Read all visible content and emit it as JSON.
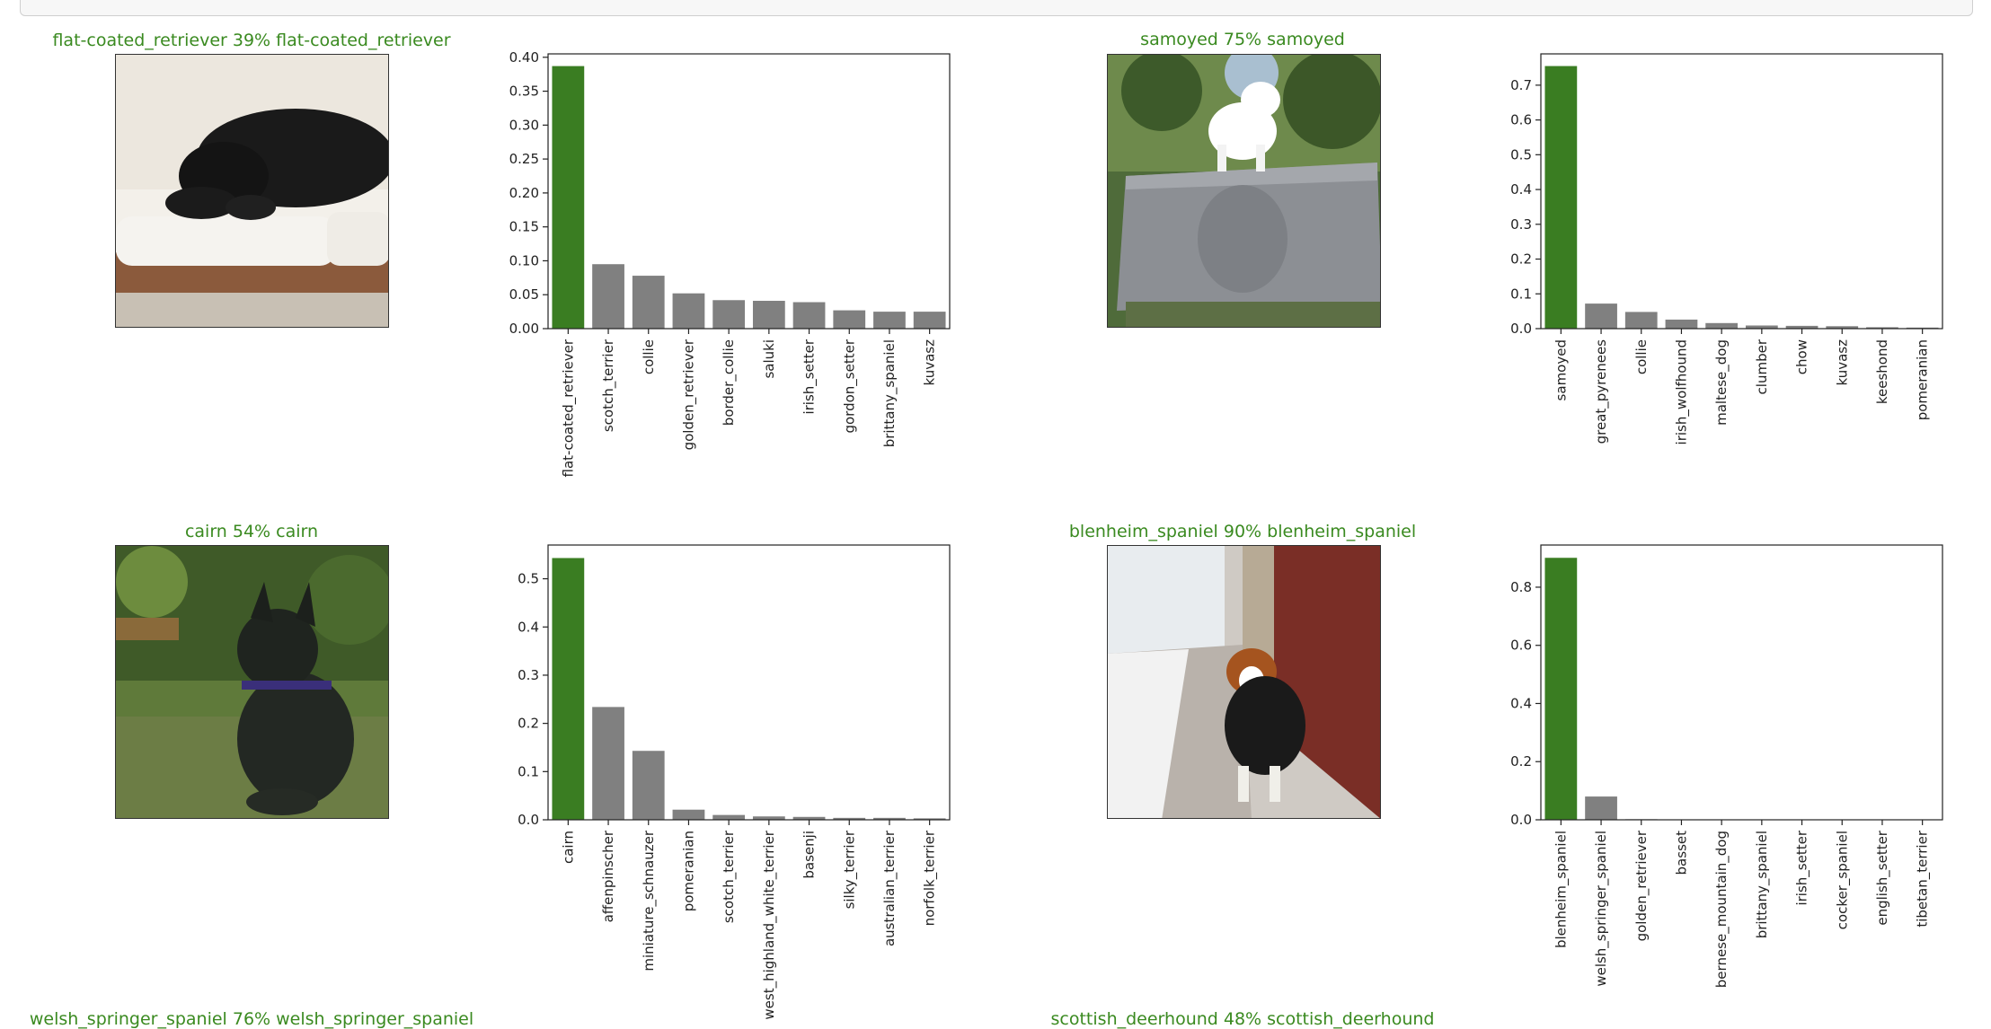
{
  "chart_data": [
    {
      "type": "bar",
      "title": "flat-coated_retriever 39% flat-coated_retriever",
      "categories": [
        "flat-coated_retriever",
        "scotch_terrier",
        "collie",
        "golden_retriever",
        "border_collie",
        "saluki",
        "irish_setter",
        "gordon_setter",
        "brittany_spaniel",
        "kuvasz"
      ],
      "values": [
        0.387,
        0.095,
        0.078,
        0.052,
        0.042,
        0.041,
        0.039,
        0.027,
        0.025,
        0.025
      ],
      "highlight_index": 0,
      "ylim": [
        0,
        0.405
      ],
      "yticks": [
        "0.00",
        "0.05",
        "0.10",
        "0.15",
        "0.20",
        "0.25",
        "0.30",
        "0.35",
        "0.40"
      ],
      "ytick_values": [
        0,
        0.05,
        0.1,
        0.15,
        0.2,
        0.25,
        0.3,
        0.35,
        0.4
      ],
      "bar_color_highlight": "#3a7d22",
      "bar_color": "#808080"
    },
    {
      "type": "bar",
      "title": "samoyed 75% samoyed",
      "categories": [
        "samoyed",
        "great_pyrenees",
        "collie",
        "irish_wolfhound",
        "maltese_dog",
        "clumber",
        "chow",
        "kuvasz",
        "keeshond",
        "pomeranian"
      ],
      "values": [
        0.755,
        0.072,
        0.048,
        0.026,
        0.016,
        0.009,
        0.008,
        0.007,
        0.004,
        0.003
      ],
      "highlight_index": 0,
      "ylim": [
        0,
        0.79
      ],
      "yticks": [
        "0.0",
        "0.1",
        "0.2",
        "0.3",
        "0.4",
        "0.5",
        "0.6",
        "0.7"
      ],
      "ytick_values": [
        0,
        0.1,
        0.2,
        0.3,
        0.4,
        0.5,
        0.6,
        0.7
      ],
      "bar_color_highlight": "#3a7d22",
      "bar_color": "#808080"
    },
    {
      "type": "bar",
      "title": "cairn 54% cairn",
      "categories": [
        "cairn",
        "affenpinscher",
        "miniature_schnauzer",
        "pomeranian",
        "scotch_terrier",
        "west_highland_white_terrier",
        "basenji",
        "silky_terrier",
        "australian_terrier",
        "norfolk_terrier"
      ],
      "values": [
        0.543,
        0.234,
        0.143,
        0.021,
        0.01,
        0.007,
        0.006,
        0.004,
        0.004,
        0.003
      ],
      "highlight_index": 0,
      "ylim": [
        0,
        0.57
      ],
      "yticks": [
        "0.0",
        "0.1",
        "0.2",
        "0.3",
        "0.4",
        "0.5"
      ],
      "ytick_values": [
        0,
        0.1,
        0.2,
        0.3,
        0.4,
        0.5
      ],
      "bar_color_highlight": "#3a7d22",
      "bar_color": "#808080"
    },
    {
      "type": "bar",
      "title": "blenheim_spaniel 90% blenheim_spaniel",
      "categories": [
        "blenheim_spaniel",
        "welsh_springer_spaniel",
        "golden_retriever",
        "basset",
        "bernese_mountain_dog",
        "brittany_spaniel",
        "irish_setter",
        "cocker_spaniel",
        "english_setter",
        "tibetan_terrier"
      ],
      "values": [
        0.901,
        0.08,
        0.002,
        0.001,
        0.001,
        0.001,
        0.001,
        0.001,
        0.001,
        0.001
      ],
      "highlight_index": 0,
      "ylim": [
        0,
        0.945
      ],
      "yticks": [
        "0.0",
        "0.2",
        "0.4",
        "0.6",
        "0.8"
      ],
      "ytick_values": [
        0,
        0.2,
        0.4,
        0.6,
        0.8
      ],
      "bar_color_highlight": "#3a7d22",
      "bar_color": "#808080"
    }
  ],
  "bottom_titles": [
    "welsh_springer_spaniel 76% welsh_springer_spaniel",
    "scottish_deerhound 48% scottish_deerhound"
  ],
  "photos": [
    {
      "icon": "black-dog-on-couch-photo"
    },
    {
      "icon": "white-samoyed-on-stone-photo"
    },
    {
      "icon": "black-cairn-terrier-on-grass-photo"
    },
    {
      "icon": "cavalier-spaniel-on-sidewalk-photo"
    }
  ]
}
